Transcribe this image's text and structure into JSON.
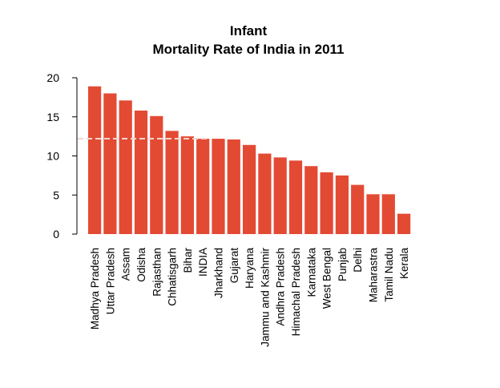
{
  "chart_data": {
    "type": "bar",
    "title_lines": [
      "Infant",
      "Mortality Rate of India in 2011"
    ],
    "xlabel": "",
    "ylabel": "",
    "ylim": [
      0,
      20
    ],
    "yticks": [
      0,
      5,
      10,
      15,
      20
    ],
    "categories": [
      "Madhya Pradesh",
      "Uttar Pradesh",
      "Assam",
      "Odisha",
      "Rajasthan",
      "Chhatisgarh",
      "Bihar",
      "INDIA",
      "Jharkhand",
      "Gujarat",
      "Haryana",
      "Jammu and Kashmir",
      "Andhra Pradesh",
      "Himachal Pradesh",
      "Karnataka",
      "West Bengal",
      "Punjab",
      "Delhi",
      "Maharastra",
      "Tamil Nadu",
      "Kerala"
    ],
    "values": [
      18.9,
      18.0,
      17.1,
      15.8,
      15.1,
      13.2,
      12.5,
      12.2,
      12.2,
      12.1,
      11.4,
      10.3,
      9.8,
      9.4,
      8.7,
      7.9,
      7.5,
      6.3,
      5.1,
      5.1,
      2.6
    ],
    "reference_line": {
      "value": 12.2,
      "style": "dashed"
    },
    "grid": false,
    "colors": {
      "bar": "#E34A33",
      "reference_line": "#F2D5CF",
      "axis": "#000000"
    }
  }
}
